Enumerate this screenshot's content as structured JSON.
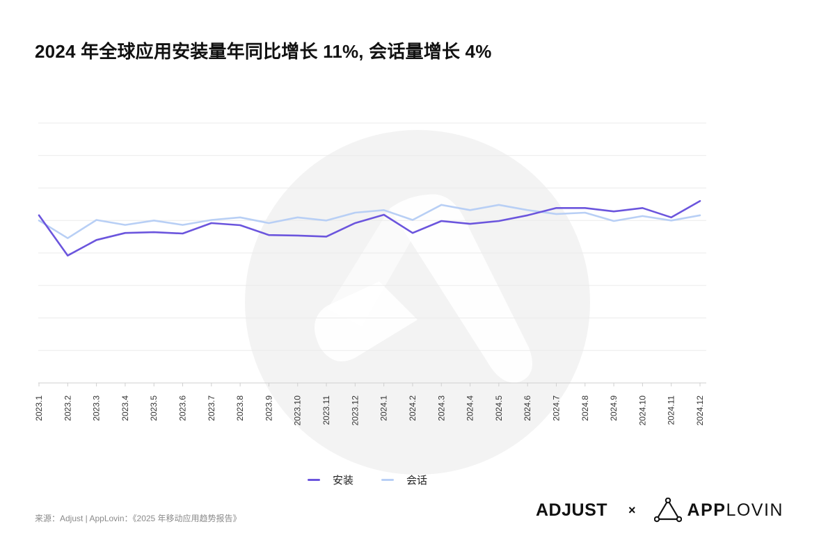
{
  "title": "2024 年全球应用安装量年同比增长 11%, 会话量增长 4%",
  "source": "来源：Adjust | AppLovin：《2025 年移动应用趋势报告》",
  "logos": {
    "adjust": "ADJUST",
    "separator": "×",
    "applovin_bold": "APP",
    "applovin_light": "LOVIN"
  },
  "legend": [
    {
      "label": "安装",
      "color": "#6b55dd"
    },
    {
      "label": "会话",
      "color": "#b8cff5"
    }
  ],
  "chart_data": {
    "type": "line",
    "title": "2024 年全球应用安装量年同比增长 11%, 会话量增长 4%",
    "x": [
      "2023.1",
      "2023.2",
      "2023.3",
      "2023.4",
      "2023.5",
      "2023.6",
      "2023.7",
      "2023.8",
      "2023.9",
      "2023.10",
      "2023.11",
      "2023.12",
      "2024.1",
      "2024.2",
      "2024.3",
      "2024.4",
      "2024.5",
      "2024.6",
      "2024.7",
      "2024.8",
      "2024.9",
      "2024.10",
      "2024.11",
      "2024.12"
    ],
    "series": [
      {
        "name": "安装",
        "color": "#6b55dd",
        "values": [
          6.45,
          4.9,
          5.5,
          5.77,
          5.8,
          5.75,
          6.15,
          6.07,
          5.69,
          5.67,
          5.63,
          6.15,
          6.47,
          5.77,
          6.23,
          6.12,
          6.23,
          6.45,
          6.73,
          6.73,
          6.6,
          6.73,
          6.37,
          7.0
        ]
      },
      {
        "name": "会话",
        "color": "#b8cff5",
        "values": [
          6.25,
          5.57,
          6.27,
          6.08,
          6.25,
          6.08,
          6.27,
          6.37,
          6.15,
          6.37,
          6.25,
          6.55,
          6.65,
          6.27,
          6.85,
          6.65,
          6.85,
          6.65,
          6.5,
          6.55,
          6.23,
          6.42,
          6.25,
          6.45
        ]
      }
    ],
    "ylim": [
      0,
      10
    ],
    "y_tick_labels": false,
    "grid": true,
    "legend_position": "bottom-center",
    "xlabel": "",
    "ylabel": ""
  }
}
